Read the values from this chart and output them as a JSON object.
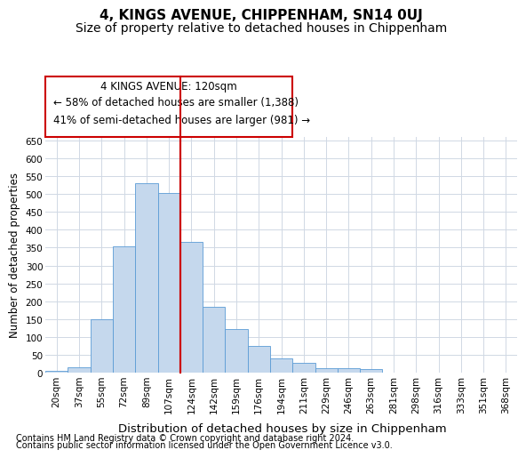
{
  "title1": "4, KINGS AVENUE, CHIPPENHAM, SN14 0UJ",
  "title2": "Size of property relative to detached houses in Chippenham",
  "xlabel": "Distribution of detached houses by size in Chippenham",
  "ylabel": "Number of detached properties",
  "footer1": "Contains HM Land Registry data © Crown copyright and database right 2024.",
  "footer2": "Contains public sector information licensed under the Open Government Licence v3.0.",
  "categories": [
    "20sqm",
    "37sqm",
    "55sqm",
    "72sqm",
    "89sqm",
    "107sqm",
    "124sqm",
    "142sqm",
    "159sqm",
    "176sqm",
    "194sqm",
    "211sqm",
    "229sqm",
    "246sqm",
    "263sqm",
    "281sqm",
    "298sqm",
    "316sqm",
    "333sqm",
    "351sqm",
    "368sqm"
  ],
  "values": [
    5,
    15,
    150,
    353,
    530,
    503,
    365,
    185,
    122,
    75,
    40,
    28,
    13,
    13,
    10,
    0,
    0,
    0,
    0,
    0,
    0
  ],
  "bar_color": "#c5d8ed",
  "bar_edge_color": "#5b9bd5",
  "grid_color": "#d0d8e4",
  "annotation_text1": "4 KINGS AVENUE: 120sqm",
  "annotation_text2": "← 58% of detached houses are smaller (1,388)",
  "annotation_text3": "41% of semi-detached houses are larger (981) →",
  "annotation_box_color": "#ffffff",
  "annotation_box_edge": "#cc0000",
  "property_line_color": "#cc0000",
  "property_line_x": 6,
  "ylim": [
    0,
    660
  ],
  "yticks": [
    0,
    50,
    100,
    150,
    200,
    250,
    300,
    350,
    400,
    450,
    500,
    550,
    600,
    650
  ],
  "title1_fontsize": 11,
  "title2_fontsize": 10,
  "xlabel_fontsize": 9.5,
  "ylabel_fontsize": 8.5,
  "tick_fontsize": 7.5,
  "annotation_fontsize": 8.5,
  "footer_fontsize": 7,
  "background_color": "#ffffff"
}
